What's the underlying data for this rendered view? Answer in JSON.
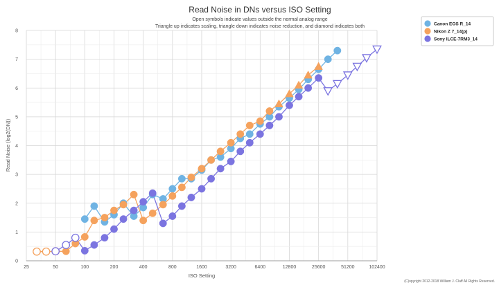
{
  "chart_data": {
    "type": "scatter",
    "title": "Read Noise in DNs versus ISO Setting",
    "subtitle_lines": [
      "Open symbols indicate values outside the normal analog range",
      "Triangle up indicates scaling, triangle down indicates noise reduction, and diamond indicates both"
    ],
    "xlabel": "ISO Setting",
    "ylabel": "Read Noise (log2(DN))",
    "x_scale": "log2",
    "xlim": [
      25,
      102400
    ],
    "ylim": [
      0,
      8
    ],
    "x_ticks": [
      "25",
      "50",
      "100",
      "200",
      "400",
      "800",
      "1600",
      "3200",
      "6400",
      "12800",
      "25600",
      "51200",
      "102400"
    ],
    "y_ticks": [
      "0",
      "1",
      "2",
      "3",
      "4",
      "5",
      "6",
      "7",
      "8"
    ],
    "grid": true,
    "legend_position": "top-right",
    "copyright": "(C)opyright 2012-2018 William J. Claff All Rights Reserved.",
    "series": [
      {
        "name": "Canon EOS R_14",
        "color": "#6fb3e3",
        "points": [
          {
            "x": 100,
            "y": 1.45,
            "m": "circle"
          },
          {
            "x": 125,
            "y": 1.9,
            "m": "circle"
          },
          {
            "x": 160,
            "y": 1.35,
            "m": "circle"
          },
          {
            "x": 200,
            "y": 1.6,
            "m": "circle"
          },
          {
            "x": 250,
            "y": 2.0,
            "m": "circle"
          },
          {
            "x": 320,
            "y": 1.55,
            "m": "circle"
          },
          {
            "x": 400,
            "y": 1.85,
            "m": "circle"
          },
          {
            "x": 500,
            "y": 2.3,
            "m": "circle"
          },
          {
            "x": 640,
            "y": 2.15,
            "m": "circle"
          },
          {
            "x": 800,
            "y": 2.5,
            "m": "circle"
          },
          {
            "x": 1000,
            "y": 2.85,
            "m": "circle"
          },
          {
            "x": 1250,
            "y": 2.85,
            "m": "circle"
          },
          {
            "x": 1600,
            "y": 3.15,
            "m": "circle"
          },
          {
            "x": 2000,
            "y": 3.5,
            "m": "circle"
          },
          {
            "x": 2500,
            "y": 3.6,
            "m": "circle"
          },
          {
            "x": 3200,
            "y": 3.9,
            "m": "circle"
          },
          {
            "x": 4000,
            "y": 4.25,
            "m": "circle"
          },
          {
            "x": 5000,
            "y": 4.4,
            "m": "circle"
          },
          {
            "x": 6400,
            "y": 4.75,
            "m": "circle"
          },
          {
            "x": 8000,
            "y": 5.0,
            "m": "circle"
          },
          {
            "x": 10000,
            "y": 5.35,
            "m": "circle"
          },
          {
            "x": 12800,
            "y": 5.65,
            "m": "circle"
          },
          {
            "x": 16000,
            "y": 5.95,
            "m": "circle"
          },
          {
            "x": 20000,
            "y": 6.3,
            "m": "circle"
          },
          {
            "x": 25600,
            "y": 6.65,
            "m": "circle"
          },
          {
            "x": 32000,
            "y": 7.0,
            "m": "circle"
          },
          {
            "x": 40000,
            "y": 7.3,
            "m": "circle"
          }
        ]
      },
      {
        "name": "Nikon Z 7_14(p)",
        "color": "#f5a25d",
        "points": [
          {
            "x": 32,
            "y": 0.32,
            "m": "circle-open"
          },
          {
            "x": 40,
            "y": 0.32,
            "m": "circle-open"
          },
          {
            "x": 50,
            "y": 0.33,
            "m": "circle-open"
          },
          {
            "x": 64,
            "y": 0.33,
            "m": "circle"
          },
          {
            "x": 80,
            "y": 0.6,
            "m": "circle"
          },
          {
            "x": 100,
            "y": 0.83,
            "m": "circle"
          },
          {
            "x": 125,
            "y": 1.4,
            "m": "circle"
          },
          {
            "x": 160,
            "y": 1.5,
            "m": "circle"
          },
          {
            "x": 200,
            "y": 1.75,
            "m": "circle"
          },
          {
            "x": 250,
            "y": 1.95,
            "m": "circle"
          },
          {
            "x": 320,
            "y": 2.3,
            "m": "circle"
          },
          {
            "x": 400,
            "y": 1.4,
            "m": "circle"
          },
          {
            "x": 500,
            "y": 1.65,
            "m": "circle"
          },
          {
            "x": 640,
            "y": 1.95,
            "m": "circle"
          },
          {
            "x": 800,
            "y": 2.25,
            "m": "circle"
          },
          {
            "x": 1000,
            "y": 2.55,
            "m": "circle"
          },
          {
            "x": 1250,
            "y": 2.9,
            "m": "circle"
          },
          {
            "x": 1600,
            "y": 3.2,
            "m": "circle"
          },
          {
            "x": 2000,
            "y": 3.5,
            "m": "circle"
          },
          {
            "x": 2500,
            "y": 3.8,
            "m": "circle"
          },
          {
            "x": 3200,
            "y": 4.1,
            "m": "circle"
          },
          {
            "x": 4000,
            "y": 4.4,
            "m": "circle"
          },
          {
            "x": 5000,
            "y": 4.7,
            "m": "circle"
          },
          {
            "x": 6400,
            "y": 4.85,
            "m": "circle"
          },
          {
            "x": 8000,
            "y": 5.2,
            "m": "circle"
          },
          {
            "x": 10000,
            "y": 5.45,
            "m": "triangle-up"
          },
          {
            "x": 12800,
            "y": 5.8,
            "m": "triangle-up"
          },
          {
            "x": 16000,
            "y": 6.1,
            "m": "triangle-up"
          },
          {
            "x": 20000,
            "y": 6.45,
            "m": "triangle-up"
          },
          {
            "x": 25600,
            "y": 6.75,
            "m": "triangle-up"
          }
        ]
      },
      {
        "name": "Sony ILCE-7RM3_14",
        "color": "#7b74e0",
        "points": [
          {
            "x": 50,
            "y": 0.33,
            "m": "circle-open"
          },
          {
            "x": 64,
            "y": 0.55,
            "m": "circle-open"
          },
          {
            "x": 80,
            "y": 0.8,
            "m": "circle-open"
          },
          {
            "x": 100,
            "y": 0.35,
            "m": "circle"
          },
          {
            "x": 125,
            "y": 0.55,
            "m": "circle"
          },
          {
            "x": 160,
            "y": 0.8,
            "m": "circle"
          },
          {
            "x": 200,
            "y": 1.1,
            "m": "circle"
          },
          {
            "x": 250,
            "y": 1.45,
            "m": "circle"
          },
          {
            "x": 320,
            "y": 1.75,
            "m": "circle"
          },
          {
            "x": 400,
            "y": 2.05,
            "m": "circle"
          },
          {
            "x": 500,
            "y": 2.35,
            "m": "circle"
          },
          {
            "x": 640,
            "y": 1.3,
            "m": "circle"
          },
          {
            "x": 800,
            "y": 1.55,
            "m": "circle"
          },
          {
            "x": 1000,
            "y": 1.9,
            "m": "circle"
          },
          {
            "x": 1250,
            "y": 2.2,
            "m": "circle"
          },
          {
            "x": 1600,
            "y": 2.5,
            "m": "circle"
          },
          {
            "x": 2000,
            "y": 2.85,
            "m": "circle"
          },
          {
            "x": 2500,
            "y": 3.2,
            "m": "circle"
          },
          {
            "x": 3200,
            "y": 3.45,
            "m": "circle"
          },
          {
            "x": 4000,
            "y": 3.8,
            "m": "circle"
          },
          {
            "x": 5000,
            "y": 4.1,
            "m": "circle"
          },
          {
            "x": 6400,
            "y": 4.4,
            "m": "circle"
          },
          {
            "x": 8000,
            "y": 4.7,
            "m": "circle"
          },
          {
            "x": 10000,
            "y": 5.0,
            "m": "circle"
          },
          {
            "x": 12800,
            "y": 5.4,
            "m": "circle"
          },
          {
            "x": 16000,
            "y": 5.7,
            "m": "circle"
          },
          {
            "x": 20000,
            "y": 6.0,
            "m": "circle"
          },
          {
            "x": 25600,
            "y": 6.35,
            "m": "circle"
          },
          {
            "x": 32000,
            "y": 5.9,
            "m": "triangle-down-open"
          },
          {
            "x": 40000,
            "y": 6.15,
            "m": "triangle-down-open"
          },
          {
            "x": 51200,
            "y": 6.45,
            "m": "triangle-down-open"
          },
          {
            "x": 64000,
            "y": 6.75,
            "m": "triangle-down-open"
          },
          {
            "x": 80000,
            "y": 7.05,
            "m": "triangle-down-open"
          },
          {
            "x": 102400,
            "y": 7.35,
            "m": "triangle-down-open"
          }
        ]
      }
    ]
  }
}
